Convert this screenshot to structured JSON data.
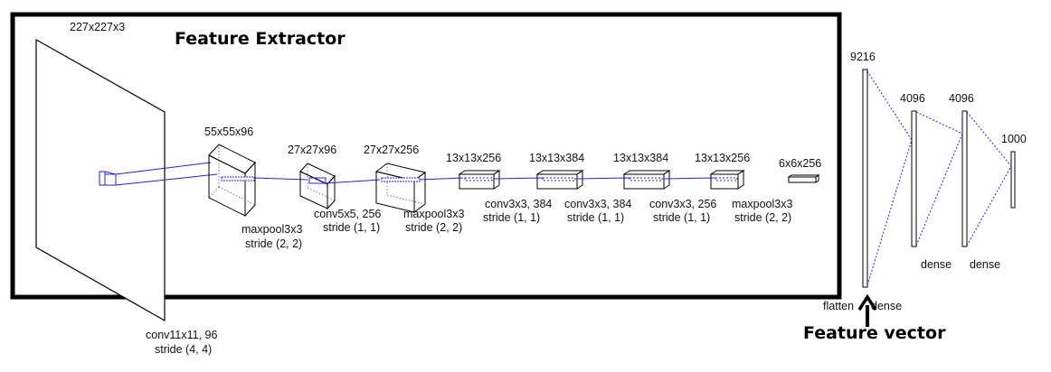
{
  "title_extractor": "Feature Extractor",
  "title_vector": "Feature vector",
  "layers": {
    "input": {
      "size": "227x227x3",
      "op1": "conv11x11, 96",
      "op2": "stride (4, 4)"
    },
    "c1": {
      "size": "55x55x96",
      "op1": "maxpool3x3",
      "op2": "stride (2, 2)"
    },
    "p1": {
      "size": "27x27x96",
      "op1": "conv5x5, 256",
      "op2": "stride (1, 1)"
    },
    "c2": {
      "size": "27x27x256",
      "op1": "maxpool3x3",
      "op2": "stride (2, 2)"
    },
    "p2": {
      "size": "13x13x256",
      "op1": "conv3x3, 384",
      "op2": "stride (1, 1)"
    },
    "c3": {
      "size": "13x13x384",
      "op1": "conv3x3, 384",
      "op2": "stride (1, 1)"
    },
    "c4": {
      "size": "13x13x384",
      "op1": "conv3x3, 256",
      "op2": "stride (1, 1)"
    },
    "c5": {
      "size": "13x13x256",
      "op1": "maxpool3x3",
      "op2": "stride (2, 2)"
    },
    "p5": {
      "size": "6x6x256"
    }
  },
  "dense": {
    "flat_size": "9216",
    "d1_size": "4096",
    "d2_size": "4096",
    "out_size": "1000",
    "flatten_label": "flatten",
    "dense0_label": "dense",
    "dense1_label": "dense",
    "dense2_label": "dense"
  }
}
